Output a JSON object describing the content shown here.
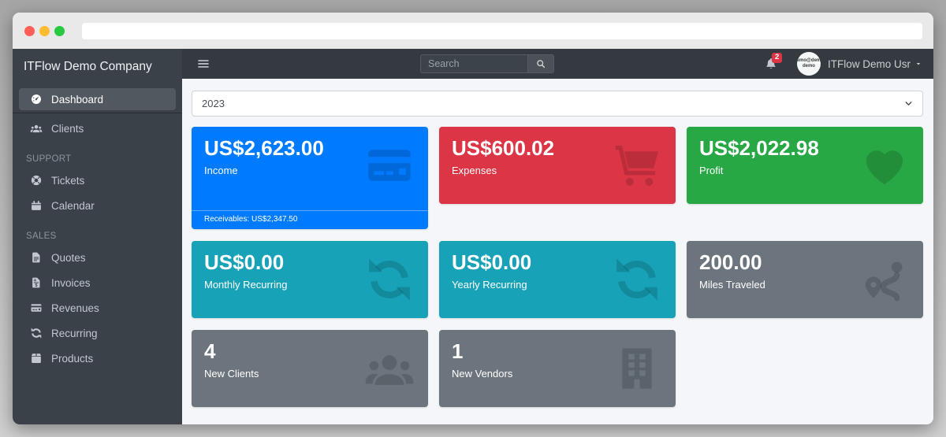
{
  "browser": {
    "url_text": ""
  },
  "sidebar": {
    "brand": "ITFlow Demo Company",
    "sections": [
      {
        "header": "",
        "items": [
          {
            "label": "Dashboard",
            "icon": "gauge-icon",
            "active": true,
            "divider_below": true
          },
          {
            "label": "Clients",
            "icon": "users-icon"
          }
        ]
      },
      {
        "header": "SUPPORT",
        "items": [
          {
            "label": "Tickets",
            "icon": "life-ring-icon"
          },
          {
            "label": "Calendar",
            "icon": "calendar-icon"
          }
        ]
      },
      {
        "header": "SALES",
        "items": [
          {
            "label": "Quotes",
            "icon": "file-icon"
          },
          {
            "label": "Invoices",
            "icon": "file-invoice-icon"
          },
          {
            "label": "Revenues",
            "icon": "credit-card-icon"
          },
          {
            "label": "Recurring",
            "icon": "sync-icon"
          },
          {
            "label": "Products",
            "icon": "box-icon"
          }
        ]
      }
    ]
  },
  "navbar": {
    "search_placeholder": "Search",
    "notification_count": "2",
    "user_name": "ITFlow Demo Usr",
    "avatar_line1": "demo@demo",
    "avatar_line2": "demo"
  },
  "main": {
    "year_selected": "2023",
    "cards": [
      {
        "value": "US$2,623.00",
        "label": "Income",
        "footer": "Receivables: US$2,347.50",
        "color": "#007bff",
        "icon": "credit-card-icon"
      },
      {
        "value": "US$600.02",
        "label": "Expenses",
        "color": "#dc3545",
        "icon": "cart-icon"
      },
      {
        "value": "US$2,022.98",
        "label": "Profit",
        "color": "#28a745",
        "icon": "heart-icon"
      },
      {
        "value": "US$0.00",
        "label": "Monthly Recurring",
        "color": "#17a2b8",
        "icon": "sync-icon"
      },
      {
        "value": "US$0.00",
        "label": "Yearly Recurring",
        "color": "#17a2b8",
        "icon": "sync-icon"
      },
      {
        "value": "200.00",
        "label": "Miles Traveled",
        "color": "#6c757d",
        "icon": "route-icon"
      },
      {
        "value": "4",
        "label": "New Clients",
        "color": "#6c757d",
        "icon": "users-icon"
      },
      {
        "value": "1",
        "label": "New Vendors",
        "color": "#6c757d",
        "icon": "building-icon"
      }
    ]
  },
  "colors": {
    "navbar_dark": "#343a40",
    "sidebar_dark": "#3a4149",
    "primary_blue": "#007bff",
    "danger_red": "#dc3545",
    "success_green": "#28a745",
    "info_teal": "#17a2b8",
    "secondary_gray": "#6c757d"
  }
}
